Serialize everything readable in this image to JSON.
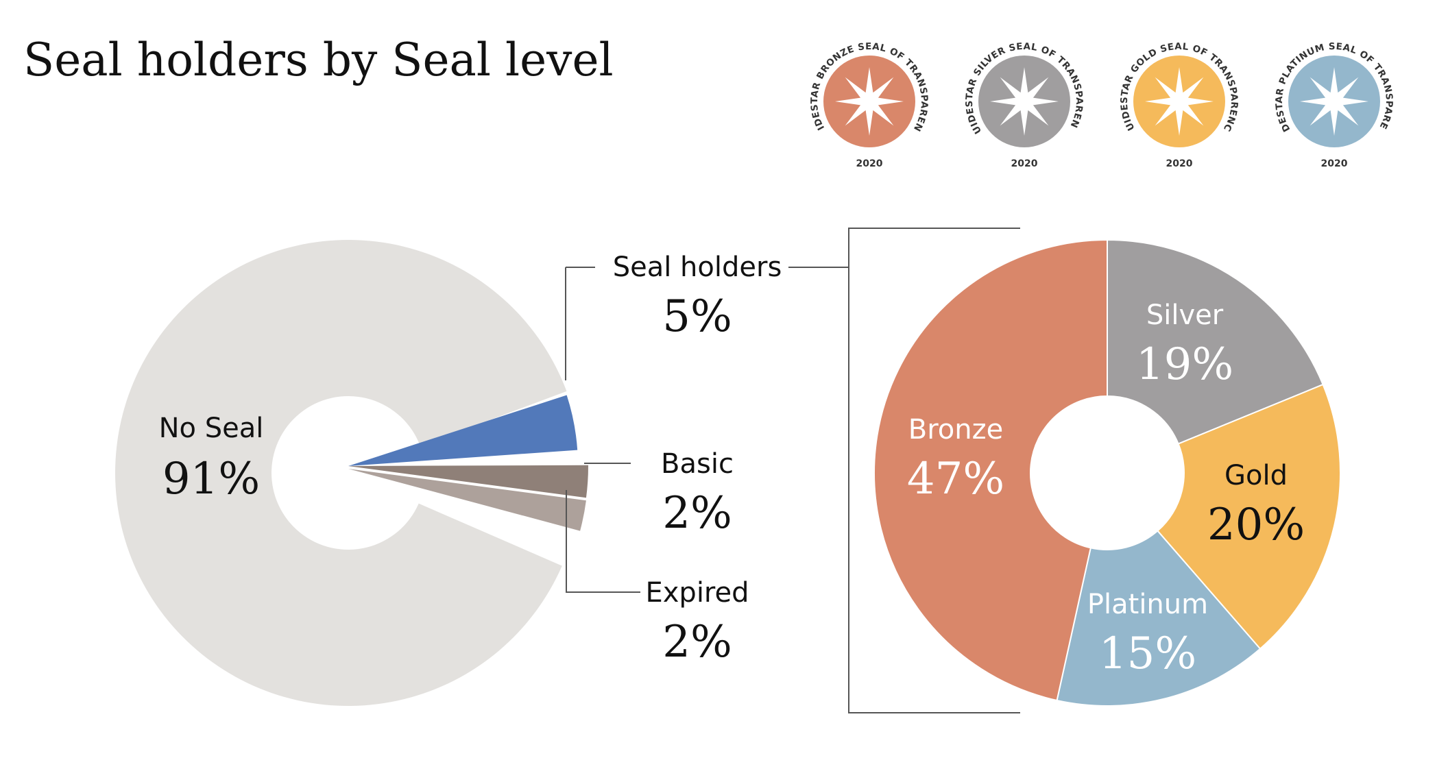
{
  "title": "Seal holders by Seal level",
  "seals": [
    {
      "ring_text": "GUIDESTAR BRONZE SEAL OF TRANSPARENCY",
      "year": "2020",
      "color": "#D9876A"
    },
    {
      "ring_text": "GUIDESTAR SILVER SEAL OF TRANSPARENCY",
      "year": "2020",
      "color": "#A09E9F"
    },
    {
      "ring_text": "GUIDESTAR GOLD SEAL OF TRANSPARENCY",
      "year": "2020",
      "color": "#F5BA5B"
    },
    {
      "ring_text": "GUIDESTAR PLATINUM SEAL OF TRANSPARENCY",
      "year": "2020",
      "color": "#94B7CC"
    }
  ],
  "chart_data": [
    {
      "type": "pie",
      "style": "donut, exploded slices",
      "slices": [
        {
          "label": "No Seal",
          "value": 91,
          "value_label": "91%",
          "color": "#E3E1DE"
        },
        {
          "label": "Seal holders",
          "value": 5,
          "value_label": "5%",
          "color": "#5279BA"
        },
        {
          "label": "Basic",
          "value": 2,
          "value_label": "2%",
          "color": "#8F8078"
        },
        {
          "label": "Expired",
          "value": 2,
          "value_label": "2%",
          "color": "#ADA19B"
        }
      ]
    },
    {
      "type": "pie",
      "style": "donut",
      "breakdown_of": "Seal holders",
      "slices": [
        {
          "label": "Bronze",
          "value": 47,
          "value_label": "47%",
          "color": "#D9876A"
        },
        {
          "label": "Silver",
          "value": 19,
          "value_label": "19%",
          "color": "#A09E9F"
        },
        {
          "label": "Gold",
          "value": 20,
          "value_label": "20%",
          "color": "#F5BA5B"
        },
        {
          "label": "Platinum",
          "value": 15,
          "value_label": "15%",
          "color": "#94B7CC"
        }
      ]
    }
  ]
}
